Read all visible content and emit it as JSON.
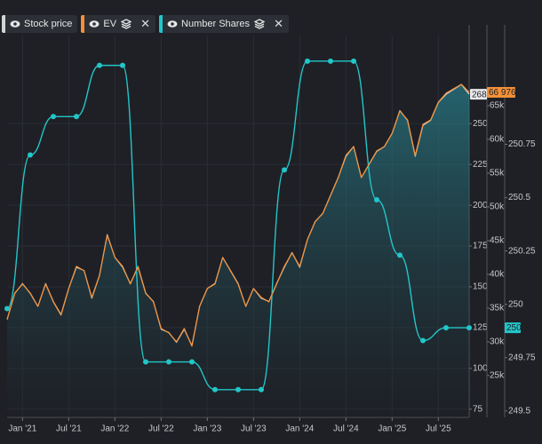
{
  "chart_data": {
    "type": "line",
    "x": [
      "2020-11",
      "2020-12",
      "2021-01",
      "2021-02",
      "2021-03",
      "2021-04",
      "2021-05",
      "2021-06",
      "2021-07",
      "2021-08",
      "2021-09",
      "2021-10",
      "2021-11",
      "2021-12",
      "2022-01",
      "2022-02",
      "2022-03",
      "2022-04",
      "2022-05",
      "2022-06",
      "2022-07",
      "2022-08",
      "2022-09",
      "2022-10",
      "2022-11",
      "2022-12",
      "2023-01",
      "2023-02",
      "2023-03",
      "2023-04",
      "2023-05",
      "2023-06",
      "2023-07",
      "2023-08",
      "2023-09",
      "2023-10",
      "2023-11",
      "2023-12",
      "2024-01",
      "2024-02",
      "2024-03",
      "2024-04",
      "2024-05",
      "2024-06",
      "2024-07",
      "2024-08",
      "2024-09",
      "2024-10",
      "2024-11",
      "2024-12",
      "2025-01",
      "2025-02",
      "2025-03",
      "2025-04",
      "2025-05",
      "2025-06",
      "2025-07",
      "2025-08",
      "2025-09",
      "2025-10",
      "2025-11"
    ],
    "xlim": [
      "2020-11",
      "2025-11"
    ],
    "xticks": [
      {
        "value": "2021-01",
        "label": "Jan '21"
      },
      {
        "value": "2021-07",
        "label": "Jul '21"
      },
      {
        "value": "2022-01",
        "label": "Jan '22"
      },
      {
        "value": "2022-07",
        "label": "Jul '22"
      },
      {
        "value": "2023-01",
        "label": "Jan '23"
      },
      {
        "value": "2023-07",
        "label": "Jul '23"
      },
      {
        "value": "2024-01",
        "label": "Jan '24"
      },
      {
        "value": "2024-07",
        "label": "Jul '24"
      },
      {
        "value": "2025-01",
        "label": "Jan '25"
      },
      {
        "value": "2025-07",
        "label": "Jul '25"
      }
    ],
    "grid": true,
    "series": [
      {
        "name": "Stock price",
        "color": "#d4d4d4",
        "axis": "y",
        "values": [
          130,
          146,
          152,
          146,
          138,
          152,
          141,
          133,
          149,
          162,
          160,
          143,
          157,
          182,
          168,
          162,
          152,
          162,
          146,
          141,
          124,
          122,
          116,
          124,
          114,
          138,
          149,
          152,
          168,
          160,
          152,
          138,
          149,
          143,
          141,
          152,
          162,
          171,
          162,
          179,
          190,
          195,
          206,
          217,
          230,
          236,
          217,
          225,
          233,
          236,
          244,
          258,
          252,
          230,
          249,
          252,
          263,
          268,
          271,
          274,
          268
        ]
      },
      {
        "name": "EV",
        "color": "#f39138",
        "axis": "y2",
        "values": [
          33300,
          37240,
          38560,
          37240,
          35270,
          38560,
          35920,
          33950,
          37900,
          41190,
          40530,
          36580,
          39870,
          45790,
          42500,
          41190,
          38560,
          41190,
          37240,
          35920,
          31980,
          31320,
          30000,
          31980,
          29340,
          35270,
          37900,
          38560,
          42500,
          40530,
          38560,
          35270,
          37900,
          36580,
          35920,
          38560,
          41190,
          43160,
          41190,
          45140,
          47770,
          49080,
          51720,
          54350,
          57640,
          58950,
          54350,
          56320,
          58300,
          58950,
          60930,
          64220,
          62900,
          57640,
          62240,
          62900,
          65530,
          66850,
          67510,
          68170,
          66976
        ],
        "last_value_label": "66 976"
      },
      {
        "name": "Number Shares",
        "color": "#22c6c9",
        "axis": "y3",
        "x": [
          "2020-11",
          "2021-02",
          "2021-05",
          "2021-08",
          "2021-11",
          "2022-02",
          "2022-05",
          "2022-08",
          "2022-11",
          "2023-02",
          "2023-05",
          "2023-08",
          "2023-11",
          "2024-02",
          "2024-05",
          "2024-08",
          "2024-11",
          "2025-02",
          "2025-05",
          "2025-08",
          "2025-11"
        ],
        "values": [
          249.98,
          250.7,
          250.88,
          250.88,
          251.12,
          251.12,
          249.73,
          249.73,
          249.73,
          249.6,
          249.6,
          249.6,
          250.63,
          251.14,
          251.14,
          251.14,
          250.49,
          250.23,
          249.83,
          249.89,
          249.89
        ],
        "last_value_label": "250"
      }
    ],
    "ylim": [
      70,
      304
    ],
    "yticks": [
      75,
      100,
      125,
      150,
      175,
      200,
      225,
      250
    ],
    "y2lim": [
      18800,
      75400
    ],
    "y2ticks": [
      {
        "value": 25000,
        "label": "25k"
      },
      {
        "value": 30000,
        "label": "30k"
      },
      {
        "value": 35000,
        "label": "35k"
      },
      {
        "value": 40000,
        "label": "40k"
      },
      {
        "value": 45000,
        "label": "45k"
      },
      {
        "value": 50000,
        "label": "50k"
      },
      {
        "value": 55000,
        "label": "55k"
      },
      {
        "value": 60000,
        "label": "60k"
      },
      {
        "value": 65000,
        "label": "65k"
      }
    ],
    "y3lim": [
      249.47,
      251.26
    ],
    "y3ticks": [
      249.5,
      249.75,
      250,
      250.25,
      250.5,
      250.75
    ]
  }
}
